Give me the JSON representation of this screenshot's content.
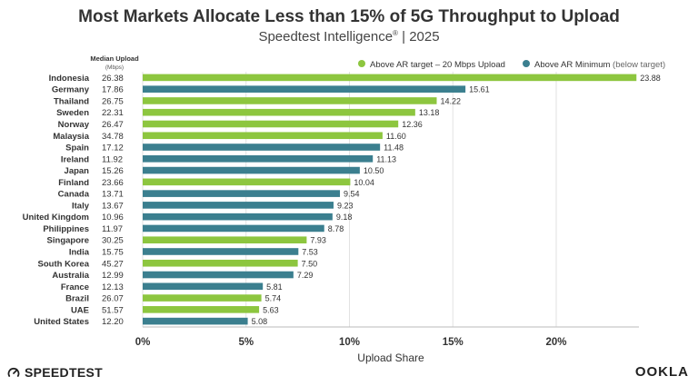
{
  "title": "Most Markets Allocate Less than 15% of 5G Throughput to Upload",
  "subtitle": "Speedtest Intelligence",
  "subtitle_reg": "®",
  "subtitle_year": "| 2025",
  "brand_left": "SPEEDTEST",
  "brand_right": "OOKLA",
  "chart_data": {
    "type": "bar",
    "orientation": "horizontal",
    "xlabel": "Upload Share",
    "median_header": "Median Upload",
    "median_unit": "(Mbps)",
    "xlim": [
      0,
      24
    ],
    "xticks": [
      0,
      5,
      10,
      15,
      20
    ],
    "xtick_labels": [
      "0%",
      "5%",
      "10%",
      "15%",
      "20%"
    ],
    "legend_position": "top-right",
    "series": [
      {
        "name": "Above AR target – 20 Mbps Upload",
        "color": "#8dc63f"
      },
      {
        "name": "Above AR Minimum",
        "name_suffix": "(below target)",
        "color": "#3b7f8f"
      }
    ],
    "categories": [
      "Indonesia",
      "Germany",
      "Thailand",
      "Sweden",
      "Norway",
      "Malaysia",
      "Spain",
      "Ireland",
      "Japan",
      "Finland",
      "Canada",
      "Italy",
      "United Kingdom",
      "Philippines",
      "Singapore",
      "India",
      "South Korea",
      "Australia",
      "France",
      "Brazil",
      "UAE",
      "United States"
    ],
    "median_upload": [
      "26.38",
      "17.86",
      "26.75",
      "22.31",
      "26.47",
      "34.78",
      "17.12",
      "11.92",
      "15.26",
      "23.66",
      "13.71",
      "13.67",
      "10.96",
      "11.97",
      "30.25",
      "15.75",
      "45.27",
      "12.99",
      "12.13",
      "26.07",
      "51.57",
      "12.20"
    ],
    "values": [
      23.88,
      15.61,
      14.22,
      13.18,
      12.36,
      11.6,
      11.48,
      11.13,
      10.5,
      10.04,
      9.54,
      9.23,
      9.18,
      8.78,
      7.93,
      7.53,
      7.5,
      7.29,
      5.81,
      5.74,
      5.63,
      5.08
    ],
    "value_labels": [
      "23.88",
      "15.61",
      "14.22",
      "13.18",
      "12.36",
      "11.60",
      "11.48",
      "11.13",
      "10.50",
      "10.04",
      "9.54",
      "9.23",
      "9.18",
      "8.78",
      "7.93",
      "7.53",
      "7.50",
      "7.29",
      "5.81",
      "5.74",
      "5.63",
      "5.08"
    ],
    "series_index": [
      0,
      1,
      0,
      0,
      0,
      0,
      1,
      1,
      1,
      0,
      1,
      1,
      1,
      1,
      0,
      1,
      0,
      1,
      1,
      0,
      0,
      1
    ]
  }
}
